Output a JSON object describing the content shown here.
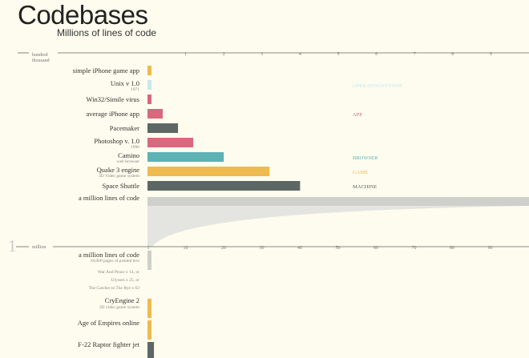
{
  "header": {
    "title": "Codebases",
    "subtitle": "Millions of lines of code"
  },
  "colors": {
    "yellow": "#edbb4f",
    "lightblue": "#c9e6ee",
    "pink": "#d9687e",
    "teal": "#5db2b4",
    "dark": "#5c6765",
    "gray": "#cfcfcb"
  },
  "chart_data": [
    {
      "type": "bar",
      "scale_label": [
        "hundred",
        "thousand"
      ],
      "axis_ticks": [
        "1",
        "2",
        "3",
        "4",
        "5",
        "6",
        "7",
        "8",
        "9"
      ],
      "xlim": [
        0,
        10
      ],
      "unit": "hundred thousand lines of code",
      "items": [
        {
          "label": "simple iPhone game app",
          "sub": "",
          "value": 0.1,
          "color": "yellow"
        },
        {
          "label": "Unix v 1.0",
          "sub": "1971",
          "value": 0.1,
          "color": "lightblue"
        },
        {
          "label": "Win32/Simile virus",
          "sub": "",
          "value": 0.1,
          "color": "pink"
        },
        {
          "label": "average iPhone app",
          "sub": "",
          "value": 0.4,
          "color": "pink"
        },
        {
          "label": "Pacemaker",
          "sub": "",
          "value": 0.8,
          "color": "dark"
        },
        {
          "label": "Photoshop v. 1.0",
          "sub": "1990",
          "value": 1.2,
          "color": "pink"
        },
        {
          "label": "Camino",
          "sub": "web browser",
          "value": 2.0,
          "color": "teal"
        },
        {
          "label": "Quake 3 engine",
          "sub": "3D Video game system",
          "value": 3.2,
          "color": "yellow"
        },
        {
          "label": "Space Shuttle",
          "sub": "",
          "value": 4.0,
          "color": "dark"
        }
      ],
      "legend": [
        {
          "label": "OPERATINGSYSTEM",
          "color": "lightblue"
        },
        {
          "label": "APP",
          "color": "pink"
        },
        {
          "label": "BROWSER",
          "color": "teal"
        },
        {
          "label": "GAME",
          "color": "yellow"
        },
        {
          "label": "MACHINE",
          "color": "dark"
        }
      ],
      "reference_bar": {
        "label": "a million lines of code",
        "value": 10,
        "color": "gray"
      }
    },
    {
      "type": "bar",
      "scale_number": "1",
      "scale_label": "million",
      "axis_ticks": [
        "1",
        "10",
        "20",
        "30",
        "40",
        "50",
        "60",
        "70",
        "80",
        "90"
      ],
      "xlim": [
        0,
        100
      ],
      "unit": "million lines of code",
      "items": [
        {
          "label": "a million lines of code",
          "sub": "18,000 pages of printed text",
          "note": [
            "War And Peace x 14, or",
            "Ulysses x 25, or",
            "The Catcher in The Rye x 63"
          ],
          "value": 1,
          "color": "gray"
        },
        {
          "label": "CryEngine 2",
          "sub": "3D video game system",
          "value": 1,
          "color": "yellow"
        },
        {
          "label": "Age of Empires online",
          "sub": "",
          "value": 1,
          "color": "yellow"
        },
        {
          "label": "F-22 Raptor fighter jet",
          "sub": "",
          "value": 1.7,
          "color": "dark"
        }
      ]
    }
  ]
}
